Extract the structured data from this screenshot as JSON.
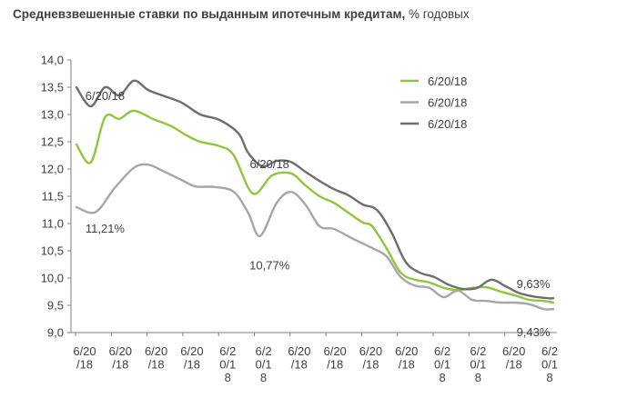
{
  "title": "Средневзвешенные ставки по выданным ипотечным кредитам,",
  "unit": " % годовых",
  "colors": {
    "green": "#8dc63f",
    "lightgray": "#a6a6a6",
    "darkgray": "#6e6e6e",
    "axis": "#7f7f7f",
    "text": "#404040"
  },
  "chart_data": {
    "type": "line",
    "ylim": [
      9.0,
      14.0
    ],
    "yticks": [
      "9,0",
      "9,5",
      "10,0",
      "10,5",
      "11,0",
      "11,5",
      "12,0",
      "12,5",
      "13,0",
      "13,5",
      "14,0"
    ],
    "xlim": [
      0,
      1
    ],
    "x_tick_labels": [
      "6/20\n/18",
      "6/20\n/18",
      "6/20\n/18",
      "6/20\n/18",
      "6/2\n0/1\n8",
      "6/2\n0/1\n8",
      "6/20\n/18",
      "6/20\n/18",
      "6/20\n/18",
      "6/20\n/18",
      "6/2\n0/1\n8",
      "6/2\n0/1\n8",
      "6/20\n/18",
      "6/2\n0/1\n8"
    ],
    "legend": [
      "6/20/18",
      "6/20/18",
      "6/20/18"
    ],
    "series": [
      {
        "name": "6/20/18",
        "color": "green",
        "x": [
          0.0,
          0.03,
          0.06,
          0.09,
          0.12,
          0.16,
          0.2,
          0.23,
          0.26,
          0.3,
          0.33,
          0.37,
          0.41,
          0.45,
          0.48,
          0.51,
          0.54,
          0.57,
          0.6,
          0.62,
          0.65,
          0.68,
          0.71,
          0.74,
          0.77,
          0.8,
          0.83,
          0.86,
          0.89,
          0.92,
          0.95,
          0.98,
          1.0
        ],
        "values": [
          12.45,
          12.12,
          12.95,
          12.92,
          13.07,
          12.92,
          12.78,
          12.62,
          12.5,
          12.42,
          12.25,
          11.55,
          11.88,
          11.92,
          11.7,
          11.5,
          11.38,
          11.2,
          11.02,
          10.95,
          10.55,
          10.1,
          9.97,
          9.92,
          9.82,
          9.78,
          9.82,
          9.83,
          9.75,
          9.68,
          9.6,
          9.58,
          9.55
        ]
      },
      {
        "name": "6/20/18",
        "color": "lightgray",
        "x": [
          0.0,
          0.04,
          0.08,
          0.12,
          0.15,
          0.18,
          0.22,
          0.25,
          0.29,
          0.33,
          0.36,
          0.385,
          0.42,
          0.45,
          0.48,
          0.51,
          0.54,
          0.58,
          0.62,
          0.65,
          0.68,
          0.71,
          0.74,
          0.77,
          0.8,
          0.83,
          0.86,
          0.89,
          0.92,
          0.95,
          0.98,
          1.0
        ],
        "values": [
          11.3,
          11.21,
          11.65,
          12.02,
          12.08,
          11.97,
          11.8,
          11.68,
          11.67,
          11.58,
          11.2,
          10.77,
          11.38,
          11.58,
          11.35,
          10.95,
          10.9,
          10.72,
          10.55,
          10.4,
          10.02,
          9.86,
          9.82,
          9.65,
          9.77,
          9.6,
          9.58,
          9.55,
          9.55,
          9.52,
          9.43,
          9.43
        ]
      },
      {
        "name": "6/20/18",
        "color": "darkgray",
        "x": [
          0.0,
          0.03,
          0.06,
          0.09,
          0.12,
          0.15,
          0.18,
          0.22,
          0.26,
          0.3,
          0.34,
          0.36,
          0.39,
          0.42,
          0.45,
          0.48,
          0.51,
          0.54,
          0.57,
          0.6,
          0.63,
          0.66,
          0.69,
          0.72,
          0.75,
          0.78,
          0.81,
          0.84,
          0.87,
          0.9,
          0.93,
          0.96,
          0.99,
          1.0
        ],
        "values": [
          13.5,
          13.15,
          13.5,
          13.35,
          13.62,
          13.45,
          13.35,
          13.22,
          13.0,
          12.9,
          12.65,
          12.3,
          12.05,
          12.15,
          12.13,
          11.95,
          11.78,
          11.63,
          11.52,
          11.35,
          11.25,
          10.85,
          10.3,
          10.1,
          10.02,
          9.88,
          9.8,
          9.82,
          9.97,
          9.85,
          9.72,
          9.66,
          9.63,
          9.63
        ]
      }
    ],
    "annotations": [
      {
        "text": "6/20/18",
        "x": 0.06,
        "y": 13.35
      },
      {
        "text": "11,21%",
        "x": 0.06,
        "y": 10.92
      },
      {
        "text": "6/20/18",
        "x": 0.405,
        "y": 12.1
      },
      {
        "text": "10,77%",
        "x": 0.405,
        "y": 10.24
      },
      {
        "text": "9,63%",
        "x": 0.985,
        "y": 9.9
      },
      {
        "text": "9,43%",
        "x": 0.985,
        "y": 9.02
      }
    ]
  }
}
